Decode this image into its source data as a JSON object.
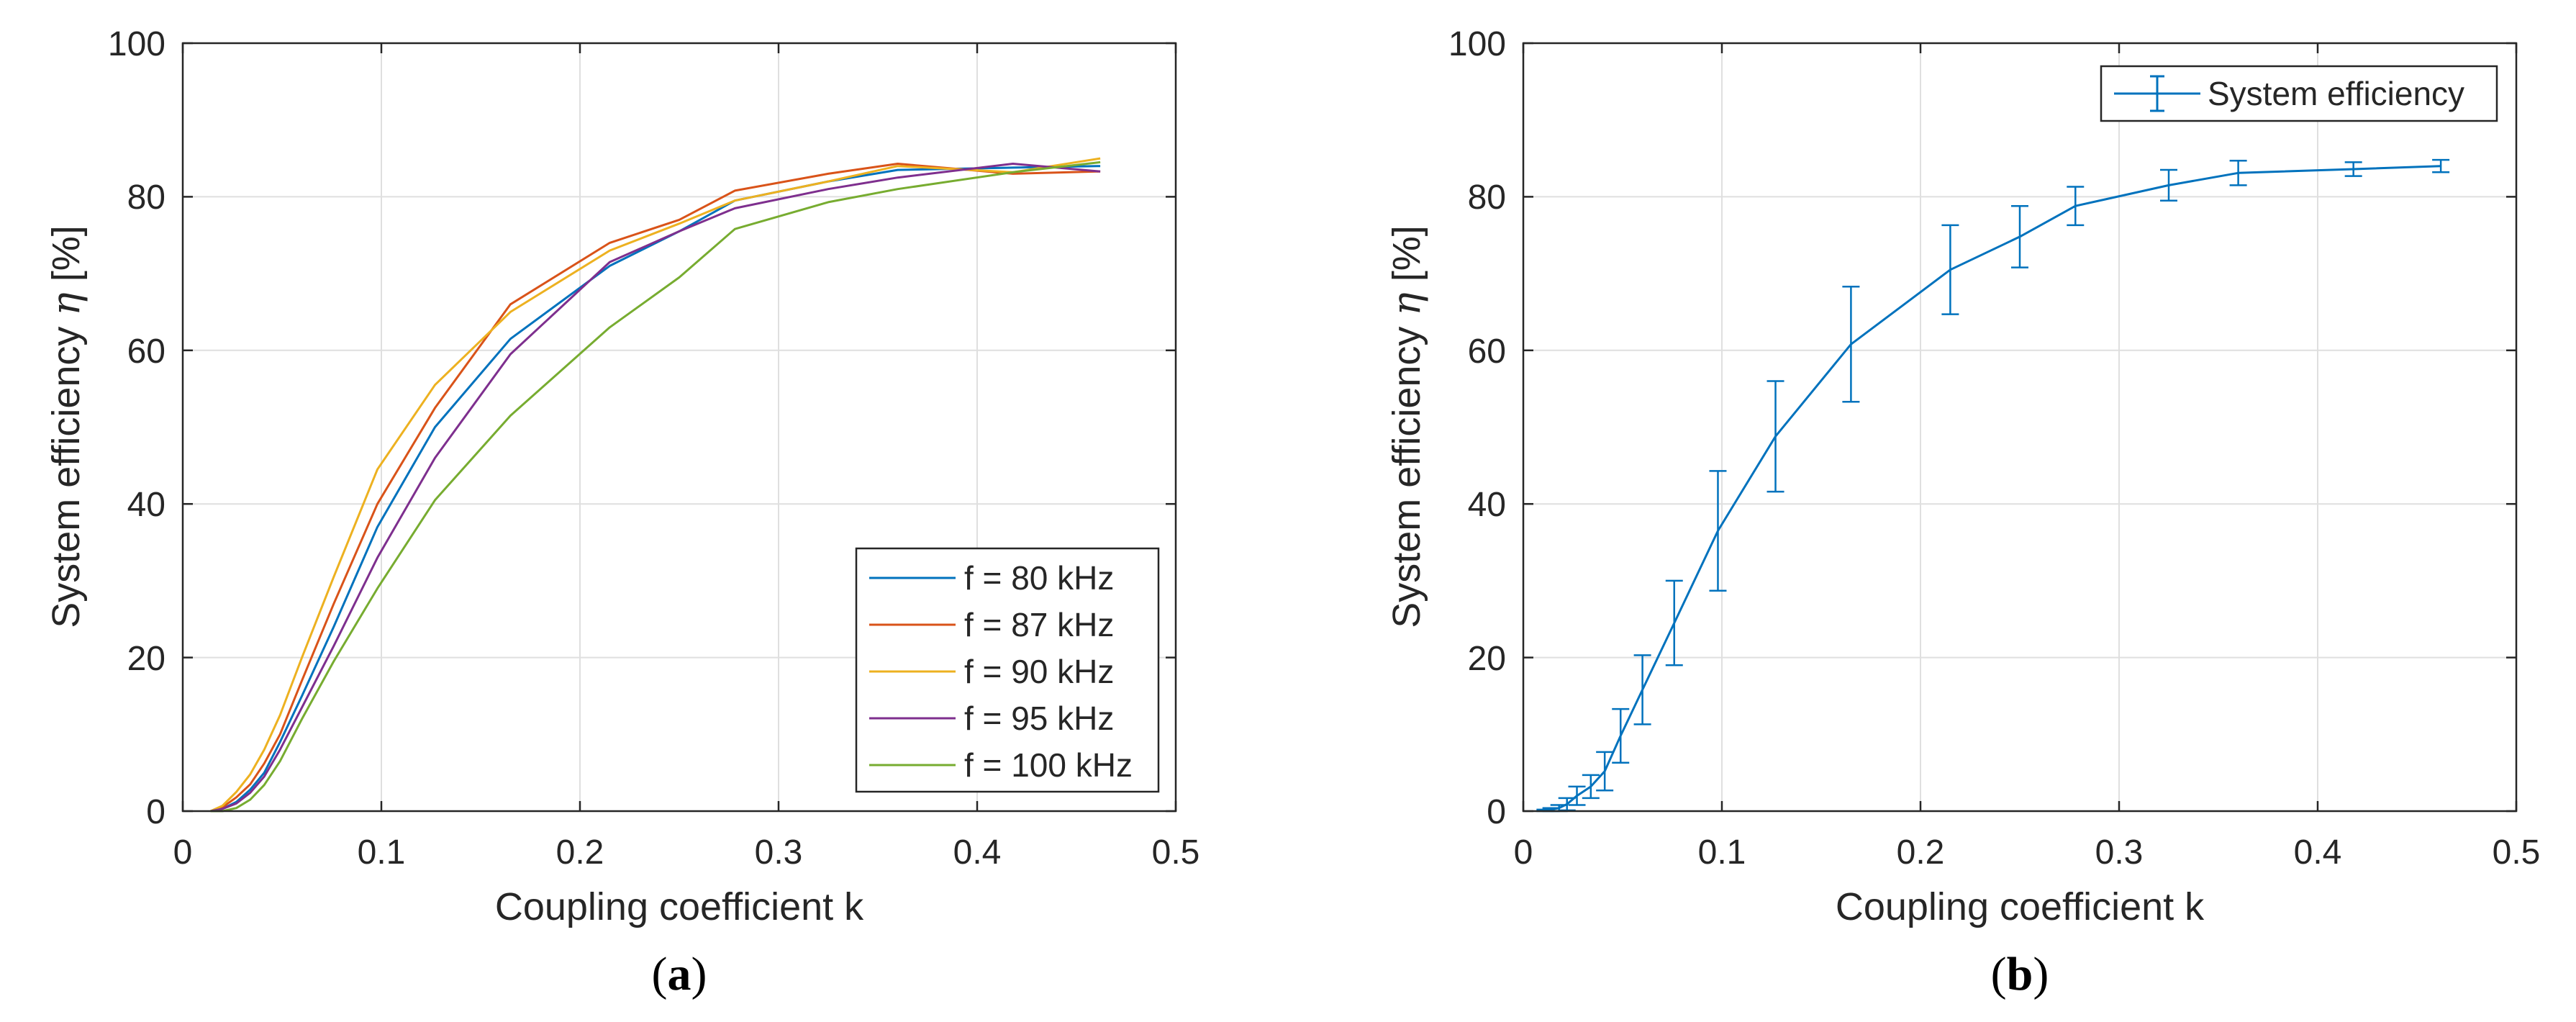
{
  "chart_data": [
    {
      "type": "line",
      "panel_label": "a",
      "xlabel": "Coupling coefficient k",
      "ylabel_text": "System efficiency ",
      "ylabel_symbol": "η",
      "ylabel_unit": " [%]",
      "xlim": [
        0,
        0.5
      ],
      "ylim": [
        0,
        100
      ],
      "xticks": [
        "0",
        "0.1",
        "0.2",
        "0.3",
        "0.4",
        "0.5"
      ],
      "yticks": [
        "0",
        "20",
        "40",
        "60",
        "80",
        "100"
      ],
      "grid": true,
      "legend_position": "bottom-right",
      "series": [
        {
          "name": "f = 80 kHz",
          "color": "#0072BD",
          "x": [
            0.014,
            0.02,
            0.027,
            0.034,
            0.041,
            0.049,
            0.06,
            0.076,
            0.098,
            0.127,
            0.165,
            0.215,
            0.25,
            0.278,
            0.325,
            0.36,
            0.418,
            0.462
          ],
          "y": [
            0,
            0.3,
            1.2,
            2.8,
            5,
            9,
            15,
            24,
            37,
            50,
            61.5,
            71,
            75.5,
            79.5,
            82,
            83.5,
            83.8,
            84
          ]
        },
        {
          "name": "f = 87 kHz",
          "color": "#D95319",
          "x": [
            0.014,
            0.02,
            0.027,
            0.034,
            0.041,
            0.049,
            0.06,
            0.076,
            0.098,
            0.127,
            0.165,
            0.215,
            0.25,
            0.278,
            0.325,
            0.36,
            0.418,
            0.462
          ],
          "y": [
            0,
            0.5,
            1.8,
            3.5,
            6.2,
            10,
            17,
            27,
            40,
            52.5,
            66,
            74,
            77,
            80.8,
            83,
            84.3,
            83,
            83.3
          ]
        },
        {
          "name": "f = 90 kHz",
          "color": "#EDB120",
          "x": [
            0.014,
            0.02,
            0.027,
            0.034,
            0.041,
            0.049,
            0.06,
            0.076,
            0.098,
            0.127,
            0.165,
            0.215,
            0.25,
            0.278,
            0.325,
            0.36,
            0.418,
            0.462
          ],
          "y": [
            0,
            0.7,
            2.5,
            4.8,
            8,
            12.5,
            20,
            30.5,
            44.5,
            55.5,
            65,
            73,
            76.5,
            79.5,
            82,
            84,
            83.2,
            85
          ]
        },
        {
          "name": "f = 95 kHz",
          "color": "#7E2F8E",
          "x": [
            0.014,
            0.02,
            0.027,
            0.034,
            0.041,
            0.049,
            0.06,
            0.076,
            0.098,
            0.127,
            0.165,
            0.215,
            0.25,
            0.278,
            0.325,
            0.36,
            0.418,
            0.462
          ],
          "y": [
            0,
            0.3,
            1,
            2.4,
            4.5,
            8,
            13.5,
            21.5,
            33,
            46,
            59.5,
            71.5,
            75.5,
            78.5,
            81,
            82.5,
            84.3,
            83.3
          ]
        },
        {
          "name": "f = 100 kHz",
          "color": "#77AC30",
          "x": [
            0.014,
            0.02,
            0.027,
            0.034,
            0.041,
            0.049,
            0.06,
            0.076,
            0.098,
            0.127,
            0.165,
            0.215,
            0.25,
            0.278,
            0.325,
            0.36,
            0.418,
            0.462
          ],
          "y": [
            0,
            0,
            0.4,
            1.5,
            3.4,
            6.5,
            12,
            19.5,
            29,
            40.5,
            51.5,
            63,
            69.5,
            75.8,
            79.3,
            81,
            83.2,
            84.5
          ]
        }
      ]
    },
    {
      "type": "line",
      "panel_label": "b",
      "xlabel": "Coupling coefficient k",
      "ylabel_text": "System efficiency ",
      "ylabel_symbol": "η",
      "ylabel_unit": " [%]",
      "xlim": [
        0,
        0.5
      ],
      "ylim": [
        0,
        100
      ],
      "xticks": [
        "0",
        "0.1",
        "0.2",
        "0.3",
        "0.4",
        "0.5"
      ],
      "yticks": [
        "0",
        "20",
        "40",
        "60",
        "80",
        "100"
      ],
      "grid": true,
      "legend_position": "top-right",
      "series": [
        {
          "name": "System efficiency",
          "color": "#0072BD",
          "x": [
            0.011,
            0.014,
            0.018,
            0.022,
            0.027,
            0.034,
            0.041,
            0.049,
            0.06,
            0.076,
            0.098,
            0.127,
            0.165,
            0.215,
            0.25,
            0.278,
            0.325,
            0.36,
            0.418,
            0.462
          ],
          "y": [
            0.1,
            0.2,
            0.4,
            0.9,
            2,
            3.2,
            5.2,
            9.8,
            15.8,
            24.5,
            36.5,
            48.8,
            60.8,
            70.5,
            74.8,
            78.8,
            81.5,
            83.1,
            83.6,
            84
          ],
          "err": [
            0.1,
            0.2,
            0.4,
            0.8,
            1.2,
            1.5,
            2.5,
            3.5,
            4.5,
            5.5,
            7.8,
            7.2,
            7.5,
            5.8,
            4,
            2.5,
            2,
            1.6,
            0.9,
            0.8
          ]
        }
      ]
    }
  ]
}
